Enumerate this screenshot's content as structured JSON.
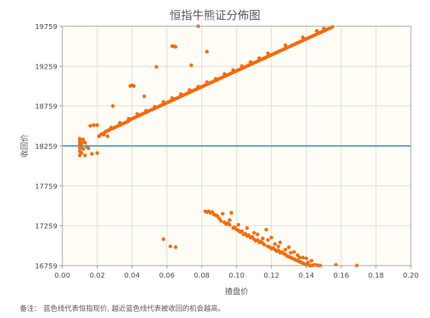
{
  "chart_data": {
    "type": "scatter",
    "title": "恒指牛熊证分佈图",
    "xlabel": "揸盘价",
    "ylabel": "收回价",
    "xlim": [
      0,
      0.2
    ],
    "ylim": [
      16759,
      19759
    ],
    "x_ticks": [
      "0.00",
      "0.02",
      "0.04",
      "0.06",
      "0.08",
      "0.10",
      "0.12",
      "0.14",
      "0.16",
      "0.18",
      "0.20"
    ],
    "y_ticks": [
      "19759",
      "19259",
      "18759",
      "18259",
      "17759",
      "17259",
      "16759"
    ],
    "x_tick_values": [
      0,
      0.02,
      0.04,
      0.06,
      0.08,
      0.1,
      0.12,
      0.14,
      0.16,
      0.18,
      0.2
    ],
    "y_tick_values": [
      19759,
      19259,
      18759,
      18259,
      17759,
      17259,
      16759
    ],
    "reference_line": {
      "y": 18259,
      "color": "#3ba3c1"
    },
    "point_color": "#f26b0f",
    "plot_background": "#fffdf5",
    "series": [
      {
        "points": [
          [
            0.01,
            18140
          ],
          [
            0.01,
            18190
          ],
          [
            0.01,
            18230
          ],
          [
            0.01,
            18280
          ],
          [
            0.01,
            18320
          ],
          [
            0.01,
            18350
          ],
          [
            0.011,
            18170
          ],
          [
            0.011,
            18260
          ],
          [
            0.011,
            18300
          ],
          [
            0.012,
            18340
          ],
          [
            0.012,
            18220
          ],
          [
            0.013,
            18300
          ],
          [
            0.013,
            18140
          ],
          [
            0.014,
            18250
          ],
          [
            0.015,
            18230
          ],
          [
            0.016,
            18510
          ],
          [
            0.018,
            18520
          ],
          [
            0.02,
            18520
          ],
          [
            0.017,
            18160
          ],
          [
            0.02,
            18170
          ],
          [
            0.021,
            18380
          ],
          [
            0.022,
            18400
          ],
          [
            0.023,
            18410
          ],
          [
            0.024,
            18420
          ],
          [
            0.025,
            18440
          ],
          [
            0.026,
            18450
          ],
          [
            0.027,
            18460
          ],
          [
            0.028,
            18470
          ],
          [
            0.029,
            18480
          ],
          [
            0.03,
            18490
          ],
          [
            0.031,
            18500
          ],
          [
            0.032,
            18510
          ],
          [
            0.033,
            18520
          ],
          [
            0.034,
            18530
          ],
          [
            0.035,
            18540
          ],
          [
            0.036,
            18550
          ],
          [
            0.037,
            18560
          ],
          [
            0.038,
            18570
          ],
          [
            0.039,
            18590
          ],
          [
            0.04,
            18600
          ],
          [
            0.041,
            18610
          ],
          [
            0.042,
            18620
          ],
          [
            0.043,
            18630
          ],
          [
            0.044,
            18640
          ],
          [
            0.045,
            18650
          ],
          [
            0.046,
            18660
          ],
          [
            0.047,
            18670
          ],
          [
            0.048,
            18680
          ],
          [
            0.049,
            18690
          ],
          [
            0.05,
            18700
          ],
          [
            0.051,
            18710
          ],
          [
            0.052,
            18720
          ],
          [
            0.053,
            18730
          ],
          [
            0.054,
            18740
          ],
          [
            0.055,
            18750
          ],
          [
            0.056,
            18760
          ],
          [
            0.057,
            18770
          ],
          [
            0.058,
            18780
          ],
          [
            0.059,
            18790
          ],
          [
            0.06,
            18800
          ],
          [
            0.061,
            18810
          ],
          [
            0.062,
            18820
          ],
          [
            0.063,
            18830
          ],
          [
            0.064,
            18840
          ],
          [
            0.065,
            18850
          ],
          [
            0.066,
            18860
          ],
          [
            0.067,
            18870
          ],
          [
            0.068,
            18880
          ],
          [
            0.069,
            18890
          ],
          [
            0.07,
            18900
          ],
          [
            0.071,
            18910
          ],
          [
            0.072,
            18920
          ],
          [
            0.073,
            18930
          ],
          [
            0.074,
            18940
          ],
          [
            0.075,
            18950
          ],
          [
            0.076,
            18960
          ],
          [
            0.077,
            18970
          ],
          [
            0.078,
            18980
          ],
          [
            0.079,
            18990
          ],
          [
            0.08,
            19000
          ],
          [
            0.081,
            19010
          ],
          [
            0.082,
            19020
          ],
          [
            0.083,
            19030
          ],
          [
            0.084,
            19040
          ],
          [
            0.085,
            19050
          ],
          [
            0.086,
            19060
          ],
          [
            0.087,
            19070
          ],
          [
            0.088,
            19080
          ],
          [
            0.089,
            19090
          ],
          [
            0.09,
            19100
          ],
          [
            0.091,
            19110
          ],
          [
            0.092,
            19120
          ],
          [
            0.093,
            19130
          ],
          [
            0.094,
            19140
          ],
          [
            0.095,
            19150
          ],
          [
            0.096,
            19160
          ],
          [
            0.097,
            19170
          ],
          [
            0.098,
            19180
          ],
          [
            0.099,
            19190
          ],
          [
            0.1,
            19200
          ],
          [
            0.101,
            19210
          ],
          [
            0.102,
            19220
          ],
          [
            0.103,
            19230
          ],
          [
            0.104,
            19240
          ],
          [
            0.105,
            19250
          ],
          [
            0.106,
            19260
          ],
          [
            0.107,
            19270
          ],
          [
            0.108,
            19280
          ],
          [
            0.109,
            19290
          ],
          [
            0.11,
            19300
          ],
          [
            0.111,
            19310
          ],
          [
            0.112,
            19320
          ],
          [
            0.113,
            19330
          ],
          [
            0.114,
            19340
          ],
          [
            0.115,
            19350
          ],
          [
            0.116,
            19360
          ],
          [
            0.117,
            19370
          ],
          [
            0.118,
            19380
          ],
          [
            0.119,
            19390
          ],
          [
            0.12,
            19400
          ],
          [
            0.121,
            19410
          ],
          [
            0.122,
            19420
          ],
          [
            0.123,
            19430
          ],
          [
            0.124,
            19440
          ],
          [
            0.125,
            19450
          ],
          [
            0.126,
            19460
          ],
          [
            0.127,
            19470
          ],
          [
            0.128,
            19480
          ],
          [
            0.129,
            19490
          ],
          [
            0.13,
            19500
          ],
          [
            0.131,
            19510
          ],
          [
            0.132,
            19520
          ],
          [
            0.133,
            19530
          ],
          [
            0.134,
            19540
          ],
          [
            0.135,
            19550
          ],
          [
            0.136,
            19560
          ],
          [
            0.137,
            19570
          ],
          [
            0.138,
            19580
          ],
          [
            0.139,
            19590
          ],
          [
            0.14,
            19600
          ],
          [
            0.141,
            19610
          ],
          [
            0.142,
            19620
          ],
          [
            0.143,
            19630
          ],
          [
            0.144,
            19640
          ],
          [
            0.145,
            19650
          ],
          [
            0.146,
            19660
          ],
          [
            0.147,
            19670
          ],
          [
            0.148,
            19680
          ],
          [
            0.149,
            19690
          ],
          [
            0.15,
            19700
          ],
          [
            0.151,
            19710
          ],
          [
            0.152,
            19720
          ],
          [
            0.153,
            19730
          ],
          [
            0.154,
            19740
          ],
          [
            0.155,
            19750
          ],
          [
            0.146,
            19700
          ],
          [
            0.15,
            19730
          ],
          [
            0.138,
            19620
          ],
          [
            0.128,
            19520
          ],
          [
            0.118,
            19420
          ],
          [
            0.108,
            19310
          ],
          [
            0.098,
            19210
          ],
          [
            0.088,
            19100
          ],
          [
            0.078,
            19000
          ],
          [
            0.068,
            18910
          ],
          [
            0.058,
            18810
          ],
          [
            0.048,
            18700
          ],
          [
            0.038,
            18600
          ],
          [
            0.028,
            18490
          ],
          [
            0.024,
            18400
          ],
          [
            0.026,
            18380
          ],
          [
            0.033,
            18550
          ],
          [
            0.043,
            18660
          ],
          [
            0.053,
            18750
          ],
          [
            0.063,
            18860
          ],
          [
            0.073,
            18960
          ],
          [
            0.083,
            19060
          ],
          [
            0.093,
            19160
          ],
          [
            0.103,
            19260
          ],
          [
            0.113,
            19360
          ],
          [
            0.029,
            18760
          ],
          [
            0.039,
            19010
          ],
          [
            0.04,
            19020
          ],
          [
            0.041,
            19010
          ],
          [
            0.047,
            18880
          ],
          [
            0.054,
            19250
          ],
          [
            0.063,
            19510
          ],
          [
            0.064,
            19510
          ],
          [
            0.065,
            19500
          ],
          [
            0.074,
            19270
          ],
          [
            0.078,
            19759
          ],
          [
            0.083,
            19440
          ],
          [
            0.082,
            17440
          ],
          [
            0.083,
            17430
          ],
          [
            0.084,
            17440
          ],
          [
            0.085,
            17420
          ],
          [
            0.086,
            17430
          ],
          [
            0.087,
            17400
          ],
          [
            0.088,
            17390
          ],
          [
            0.089,
            17380
          ],
          [
            0.09,
            17350
          ],
          [
            0.091,
            17320
          ],
          [
            0.092,
            17410
          ],
          [
            0.093,
            17300
          ],
          [
            0.094,
            17280
          ],
          [
            0.095,
            17290
          ],
          [
            0.096,
            17270
          ],
          [
            0.097,
            17420
          ],
          [
            0.098,
            17230
          ],
          [
            0.099,
            17240
          ],
          [
            0.1,
            17210
          ],
          [
            0.101,
            17200
          ],
          [
            0.102,
            17180
          ],
          [
            0.103,
            17190
          ],
          [
            0.104,
            17150
          ],
          [
            0.105,
            17160
          ],
          [
            0.106,
            17130
          ],
          [
            0.107,
            17140
          ],
          [
            0.108,
            17110
          ],
          [
            0.109,
            17120
          ],
          [
            0.11,
            17090
          ],
          [
            0.111,
            17070
          ],
          [
            0.112,
            17080
          ],
          [
            0.113,
            17050
          ],
          [
            0.114,
            17060
          ],
          [
            0.115,
            17040
          ],
          [
            0.116,
            17020
          ],
          [
            0.117,
            17210
          ],
          [
            0.118,
            17000
          ],
          [
            0.119,
            16990
          ],
          [
            0.12,
            16970
          ],
          [
            0.121,
            16980
          ],
          [
            0.122,
            16960
          ],
          [
            0.123,
            16940
          ],
          [
            0.124,
            16950
          ],
          [
            0.125,
            16920
          ],
          [
            0.126,
            16930
          ],
          [
            0.127,
            16910
          ],
          [
            0.128,
            16900
          ],
          [
            0.129,
            16880
          ],
          [
            0.13,
            16870
          ],
          [
            0.131,
            16860
          ],
          [
            0.132,
            16850
          ],
          [
            0.133,
            16840
          ],
          [
            0.134,
            16830
          ],
          [
            0.135,
            16820
          ],
          [
            0.136,
            16810
          ],
          [
            0.137,
            16800
          ],
          [
            0.138,
            16790
          ],
          [
            0.139,
            16780
          ],
          [
            0.14,
            16770
          ],
          [
            0.141,
            16770
          ],
          [
            0.142,
            16760
          ],
          [
            0.143,
            16760
          ],
          [
            0.144,
            16765
          ],
          [
            0.145,
            16770
          ],
          [
            0.146,
            16765
          ],
          [
            0.147,
            16760
          ],
          [
            0.148,
            16760
          ],
          [
            0.13,
            16990
          ],
          [
            0.125,
            17050
          ],
          [
            0.115,
            17100
          ],
          [
            0.11,
            17170
          ],
          [
            0.12,
            17110
          ],
          [
            0.135,
            16890
          ],
          [
            0.14,
            16850
          ],
          [
            0.128,
            16960
          ],
          [
            0.112,
            17150
          ],
          [
            0.122,
            17030
          ],
          [
            0.133,
            16930
          ],
          [
            0.138,
            16860
          ],
          [
            0.143,
            16820
          ],
          [
            0.157,
            16770
          ],
          [
            0.169,
            16760
          ],
          [
            0.058,
            17090
          ],
          [
            0.062,
            17000
          ],
          [
            0.065,
            16990
          ],
          [
            0.106,
            17230
          ],
          [
            0.096,
            17330
          ],
          [
            0.101,
            17270
          ],
          [
            0.118,
            17080
          ],
          [
            0.124,
            17000
          ],
          [
            0.131,
            16920
          ],
          [
            0.136,
            16860
          ],
          [
            0.141,
            16800
          ]
        ]
      }
    ]
  },
  "footnote": "备注： 蓝色线代表恒指现价, 越近蓝色线代表被收回的机会越高。"
}
